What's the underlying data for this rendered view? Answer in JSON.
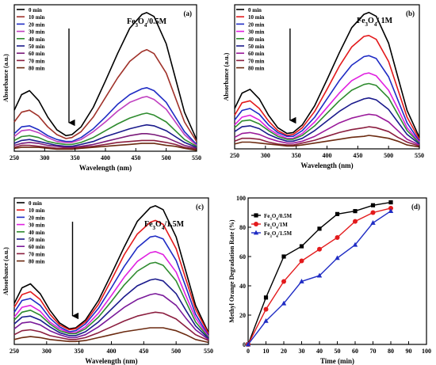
{
  "chart_data": [
    {
      "type": "line",
      "panel_label": "(a)",
      "sample_label": "Fe3O4/0.5M",
      "xlabel": "Wavelength (nm)",
      "ylabel": "Absorbance (a.u.)",
      "xlim": [
        250,
        550
      ],
      "x_ticks": [
        250,
        300,
        350,
        400,
        450,
        500,
        550
      ],
      "y_ticks_shown": false,
      "legend_position": "top-left",
      "arrow_at_x": 340,
      "x": [
        250,
        262,
        275,
        290,
        305,
        320,
        335,
        345,
        360,
        380,
        400,
        420,
        440,
        460,
        468,
        480,
        500,
        515,
        530,
        550
      ],
      "series": [
        {
          "name": "0 min",
          "color": "#000000",
          "values": [
            0.42,
            0.58,
            0.62,
            0.52,
            0.35,
            0.22,
            0.16,
            0.17,
            0.25,
            0.45,
            0.72,
            1.0,
            1.26,
            1.4,
            1.42,
            1.38,
            1.1,
            0.75,
            0.4,
            0.12
          ]
        },
        {
          "name": "10 min",
          "color": "#a0322a",
          "values": [
            0.3,
            0.4,
            0.42,
            0.36,
            0.25,
            0.17,
            0.13,
            0.14,
            0.2,
            0.35,
            0.55,
            0.75,
            0.92,
            1.02,
            1.04,
            1.0,
            0.8,
            0.55,
            0.3,
            0.1
          ]
        },
        {
          "name": "20 min",
          "color": "#1f2cc4",
          "values": [
            0.18,
            0.25,
            0.26,
            0.22,
            0.16,
            0.12,
            0.1,
            0.1,
            0.14,
            0.23,
            0.35,
            0.48,
            0.58,
            0.64,
            0.65,
            0.62,
            0.5,
            0.35,
            0.2,
            0.07
          ]
        },
        {
          "name": "30 min",
          "color": "#c040c0",
          "values": [
            0.15,
            0.21,
            0.22,
            0.19,
            0.14,
            0.1,
            0.09,
            0.09,
            0.12,
            0.2,
            0.3,
            0.41,
            0.5,
            0.55,
            0.56,
            0.53,
            0.43,
            0.3,
            0.17,
            0.06
          ]
        },
        {
          "name": "40 min",
          "color": "#2e8b2e",
          "values": [
            0.11,
            0.15,
            0.16,
            0.14,
            0.1,
            0.08,
            0.07,
            0.07,
            0.09,
            0.14,
            0.21,
            0.28,
            0.34,
            0.38,
            0.39,
            0.37,
            0.3,
            0.21,
            0.12,
            0.05
          ]
        },
        {
          "name": "50 min",
          "color": "#1a1a8c",
          "values": [
            0.08,
            0.11,
            0.12,
            0.1,
            0.08,
            0.06,
            0.05,
            0.05,
            0.07,
            0.1,
            0.15,
            0.19,
            0.23,
            0.26,
            0.27,
            0.26,
            0.21,
            0.15,
            0.09,
            0.04
          ]
        },
        {
          "name": "60 min",
          "color": "#7a1a7a",
          "values": [
            0.06,
            0.08,
            0.09,
            0.08,
            0.06,
            0.05,
            0.04,
            0.04,
            0.05,
            0.07,
            0.1,
            0.13,
            0.16,
            0.18,
            0.18,
            0.17,
            0.14,
            0.1,
            0.06,
            0.03
          ]
        },
        {
          "name": "70 min",
          "color": "#8b1e3f",
          "values": [
            0.04,
            0.06,
            0.06,
            0.05,
            0.04,
            0.03,
            0.03,
            0.03,
            0.04,
            0.05,
            0.07,
            0.09,
            0.1,
            0.11,
            0.11,
            0.11,
            0.09,
            0.07,
            0.04,
            0.02
          ]
        },
        {
          "name": "80 min",
          "color": "#6b2a10",
          "values": [
            0.03,
            0.04,
            0.04,
            0.04,
            0.03,
            0.02,
            0.02,
            0.02,
            0.03,
            0.04,
            0.05,
            0.06,
            0.07,
            0.08,
            0.08,
            0.08,
            0.06,
            0.05,
            0.03,
            0.01
          ]
        }
      ]
    },
    {
      "type": "line",
      "panel_label": "(b)",
      "sample_label": "Fe3O4/ 1M",
      "xlabel": "Wavelength (nm)",
      "ylabel": "Absorbance (a.u.)",
      "xlim": [
        250,
        550
      ],
      "x_ticks": [
        250,
        300,
        350,
        400,
        450,
        500,
        550
      ],
      "y_ticks_shown": false,
      "legend_position": "top-left",
      "arrow_at_x": 340,
      "x": [
        250,
        262,
        275,
        290,
        305,
        320,
        335,
        345,
        360,
        380,
        400,
        420,
        440,
        460,
        468,
        480,
        500,
        515,
        530,
        550
      ],
      "series": [
        {
          "name": "0 min",
          "color": "#000000",
          "values": [
            0.42,
            0.58,
            0.62,
            0.52,
            0.35,
            0.22,
            0.16,
            0.17,
            0.25,
            0.45,
            0.72,
            1.0,
            1.26,
            1.4,
            1.42,
            1.38,
            1.1,
            0.75,
            0.4,
            0.12
          ]
        },
        {
          "name": "10 min",
          "color": "#e31a1c",
          "values": [
            0.35,
            0.48,
            0.5,
            0.42,
            0.29,
            0.19,
            0.14,
            0.15,
            0.22,
            0.39,
            0.62,
            0.86,
            1.06,
            1.17,
            1.18,
            1.14,
            0.91,
            0.62,
            0.33,
            0.1
          ]
        },
        {
          "name": "20 min",
          "color": "#1f2cc4",
          "values": [
            0.3,
            0.4,
            0.42,
            0.36,
            0.25,
            0.17,
            0.13,
            0.13,
            0.19,
            0.33,
            0.52,
            0.71,
            0.87,
            0.96,
            0.97,
            0.94,
            0.75,
            0.51,
            0.27,
            0.08
          ]
        },
        {
          "name": "30 min",
          "color": "#e020e0",
          "values": [
            0.25,
            0.33,
            0.35,
            0.3,
            0.21,
            0.15,
            0.11,
            0.11,
            0.16,
            0.28,
            0.43,
            0.58,
            0.71,
            0.78,
            0.79,
            0.76,
            0.61,
            0.42,
            0.22,
            0.07
          ]
        },
        {
          "name": "40 min",
          "color": "#2e8b2e",
          "values": [
            0.22,
            0.29,
            0.3,
            0.26,
            0.19,
            0.13,
            0.1,
            0.1,
            0.14,
            0.24,
            0.37,
            0.5,
            0.61,
            0.67,
            0.68,
            0.66,
            0.53,
            0.36,
            0.19,
            0.06
          ]
        },
        {
          "name": "50 min",
          "color": "#1a1a8c",
          "values": [
            0.18,
            0.23,
            0.24,
            0.21,
            0.15,
            0.11,
            0.08,
            0.08,
            0.11,
            0.19,
            0.29,
            0.39,
            0.47,
            0.52,
            0.53,
            0.51,
            0.41,
            0.28,
            0.15,
            0.05
          ]
        },
        {
          "name": "60 min",
          "color": "#9a1a9a",
          "values": [
            0.12,
            0.16,
            0.17,
            0.15,
            0.11,
            0.08,
            0.06,
            0.06,
            0.08,
            0.13,
            0.2,
            0.27,
            0.32,
            0.35,
            0.36,
            0.35,
            0.28,
            0.19,
            0.1,
            0.04
          ]
        },
        {
          "name": "70 min",
          "color": "#8b1e3f",
          "values": [
            0.08,
            0.11,
            0.11,
            0.1,
            0.07,
            0.05,
            0.04,
            0.04,
            0.06,
            0.09,
            0.13,
            0.17,
            0.2,
            0.22,
            0.23,
            0.22,
            0.18,
            0.12,
            0.07,
            0.03
          ]
        },
        {
          "name": "80 min",
          "color": "#6b2a10",
          "values": [
            0.05,
            0.07,
            0.07,
            0.06,
            0.05,
            0.04,
            0.03,
            0.03,
            0.04,
            0.06,
            0.08,
            0.1,
            0.12,
            0.13,
            0.14,
            0.13,
            0.11,
            0.08,
            0.04,
            0.02
          ]
        }
      ]
    },
    {
      "type": "line",
      "panel_label": "(c)",
      "sample_label": "Fe3O4/1.5M",
      "xlabel": "Wavelength (nm)",
      "ylabel": "Absorbance (a.u.)",
      "xlim": [
        250,
        550
      ],
      "x_ticks": [
        250,
        300,
        350,
        400,
        450,
        500,
        550
      ],
      "y_ticks_shown": false,
      "legend_position": "top-left",
      "arrow_at_x": 340,
      "x": [
        250,
        262,
        275,
        290,
        305,
        320,
        335,
        345,
        360,
        380,
        400,
        420,
        440,
        460,
        468,
        480,
        500,
        515,
        530,
        550
      ],
      "series": [
        {
          "name": "0 min",
          "color": "#000000",
          "values": [
            0.42,
            0.58,
            0.62,
            0.52,
            0.35,
            0.22,
            0.16,
            0.17,
            0.25,
            0.45,
            0.72,
            1.0,
            1.26,
            1.4,
            1.42,
            1.38,
            1.1,
            0.75,
            0.4,
            0.12
          ]
        },
        {
          "name": "10 min",
          "color": "#e31a1c",
          "values": [
            0.38,
            0.51,
            0.54,
            0.46,
            0.31,
            0.2,
            0.15,
            0.16,
            0.23,
            0.41,
            0.66,
            0.92,
            1.13,
            1.25,
            1.27,
            1.23,
            0.98,
            0.67,
            0.36,
            0.11
          ]
        },
        {
          "name": "20 min",
          "color": "#1f2cc4",
          "values": [
            0.33,
            0.45,
            0.47,
            0.4,
            0.27,
            0.18,
            0.13,
            0.14,
            0.21,
            0.37,
            0.58,
            0.8,
            0.99,
            1.1,
            1.11,
            1.08,
            0.86,
            0.59,
            0.31,
            0.09
          ]
        },
        {
          "name": "30 min",
          "color": "#e020e0",
          "values": [
            0.28,
            0.38,
            0.4,
            0.34,
            0.23,
            0.16,
            0.12,
            0.12,
            0.18,
            0.32,
            0.5,
            0.69,
            0.85,
            0.94,
            0.95,
            0.92,
            0.74,
            0.5,
            0.27,
            0.08
          ]
        },
        {
          "name": "40 min",
          "color": "#2e8b2e",
          "values": [
            0.25,
            0.33,
            0.35,
            0.3,
            0.21,
            0.14,
            0.11,
            0.11,
            0.16,
            0.28,
            0.44,
            0.61,
            0.75,
            0.83,
            0.84,
            0.81,
            0.65,
            0.44,
            0.23,
            0.07
          ]
        },
        {
          "name": "50 min",
          "color": "#1a1a8c",
          "values": [
            0.21,
            0.28,
            0.29,
            0.25,
            0.18,
            0.12,
            0.09,
            0.09,
            0.13,
            0.23,
            0.36,
            0.49,
            0.6,
            0.66,
            0.67,
            0.65,
            0.52,
            0.35,
            0.19,
            0.06
          ]
        },
        {
          "name": "60 min",
          "color": "#7a1a9a",
          "values": [
            0.16,
            0.22,
            0.23,
            0.2,
            0.14,
            0.1,
            0.07,
            0.07,
            0.1,
            0.18,
            0.28,
            0.38,
            0.46,
            0.51,
            0.52,
            0.5,
            0.4,
            0.27,
            0.15,
            0.05
          ]
        },
        {
          "name": "70 min",
          "color": "#8b1e3f",
          "values": [
            0.1,
            0.14,
            0.15,
            0.13,
            0.09,
            0.07,
            0.05,
            0.05,
            0.07,
            0.12,
            0.18,
            0.24,
            0.29,
            0.32,
            0.33,
            0.32,
            0.26,
            0.18,
            0.1,
            0.04
          ]
        },
        {
          "name": "80 min",
          "color": "#6b2a10",
          "values": [
            0.05,
            0.07,
            0.08,
            0.07,
            0.05,
            0.04,
            0.03,
            0.03,
            0.04,
            0.07,
            0.1,
            0.13,
            0.15,
            0.17,
            0.17,
            0.17,
            0.14,
            0.1,
            0.05,
            0.02
          ]
        }
      ]
    },
    {
      "type": "line",
      "panel_label": "(d)",
      "xlabel": "Time (min)",
      "ylabel": "Methyl Orange Degradation Rate (%)",
      "xlim": [
        0,
        100
      ],
      "ylim": [
        0,
        100
      ],
      "x_ticks": [
        0,
        10,
        20,
        30,
        40,
        50,
        60,
        70,
        80,
        90,
        100
      ],
      "y_ticks": [
        0,
        20,
        40,
        60,
        80,
        100
      ],
      "legend_position": "top-left",
      "x": [
        0,
        10,
        20,
        30,
        40,
        50,
        60,
        70,
        80
      ],
      "series": [
        {
          "name": "Fe3O4/0.5M",
          "color": "#000000",
          "marker": "square",
          "values": [
            0,
            32,
            60,
            67,
            79,
            89,
            91,
            95,
            97
          ]
        },
        {
          "name": "Fe3O4/1M",
          "color": "#e31a1c",
          "marker": "circle",
          "values": [
            0,
            24,
            43,
            57,
            65,
            73,
            84,
            90,
            93
          ]
        },
        {
          "name": "Fe3O4/1.5M",
          "color": "#1f2cc4",
          "marker": "triangle",
          "values": [
            0,
            16,
            28,
            43,
            47,
            59,
            68,
            83,
            91
          ]
        }
      ]
    }
  ]
}
